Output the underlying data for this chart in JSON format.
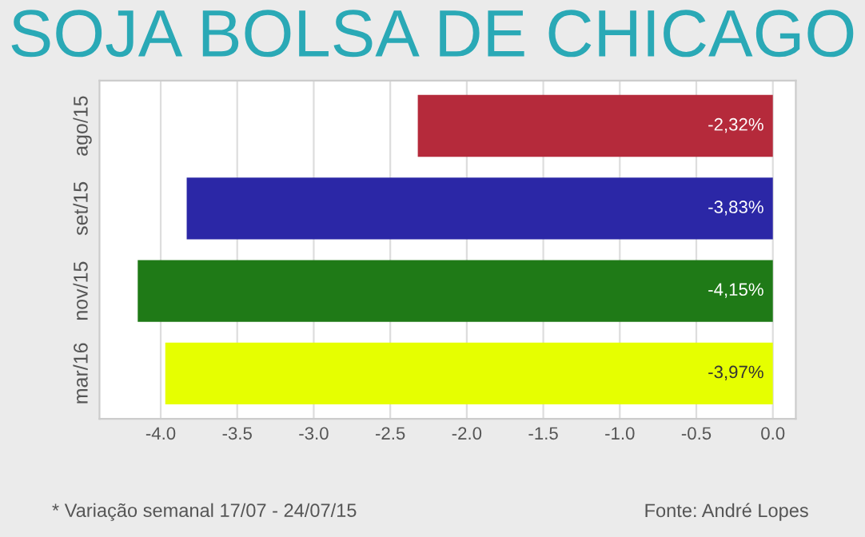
{
  "chart_data": {
    "type": "bar",
    "orientation": "horizontal",
    "title": "SOJA BOLSA DE CHICAGO",
    "categories": [
      "ago/15",
      "set/15",
      "nov/15",
      "mar/16"
    ],
    "values": [
      -2.32,
      -3.83,
      -4.15,
      -3.97
    ],
    "colors": [
      "#b52a3b",
      "#2b27a6",
      "#1f7a17",
      "#e6ff00"
    ],
    "value_labels": [
      "-2,32%",
      "-3,83%",
      "-4,15%",
      "-3,97%"
    ],
    "xlim": [
      -4.4,
      0.15
    ],
    "xticks": [
      {
        "value": -4.0,
        "label": "-4.0"
      },
      {
        "value": -3.5,
        "label": "-3.5"
      },
      {
        "value": -3.0,
        "label": "-3.0"
      },
      {
        "value": -2.5,
        "label": "-2.5"
      },
      {
        "value": -2.0,
        "label": "-2.0"
      },
      {
        "value": -1.5,
        "label": "-1.5"
      },
      {
        "value": -1.0,
        "label": "-1.0"
      },
      {
        "value": -0.5,
        "label": "-0.5"
      },
      {
        "value": 0.0,
        "label": "0.0"
      }
    ],
    "grid": "x",
    "annotations": [
      "* Variação semanal 17/07 - 24/07/15",
      "Fonte: André Lopes"
    ]
  }
}
